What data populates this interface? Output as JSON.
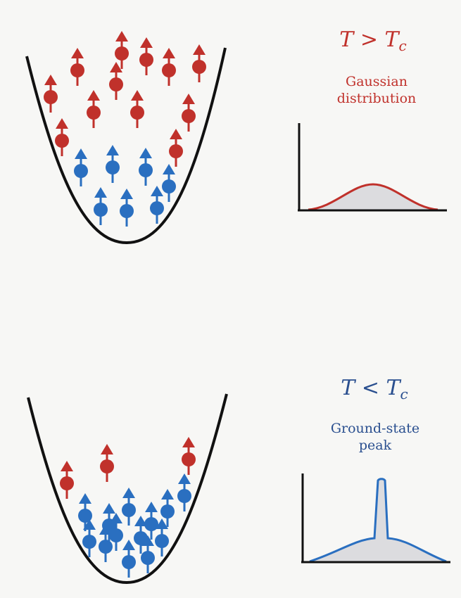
{
  "top": {
    "condition": {
      "T": "T",
      "op": ">",
      "Tc": "T",
      "sub": "c"
    },
    "caption_line1": "Gaussian",
    "caption_line2": "distribution"
  },
  "bottom": {
    "condition": {
      "T": "T",
      "op": "<",
      "Tc": "T",
      "sub": "c"
    },
    "caption_line1": "Ground-state",
    "caption_line2": "peak"
  },
  "colors": {
    "hot": "#c0312b",
    "cold": "#2a6fc0",
    "text_cold": "#2a4f8f",
    "well": "#111111",
    "fill": "#dcdcdf"
  }
}
